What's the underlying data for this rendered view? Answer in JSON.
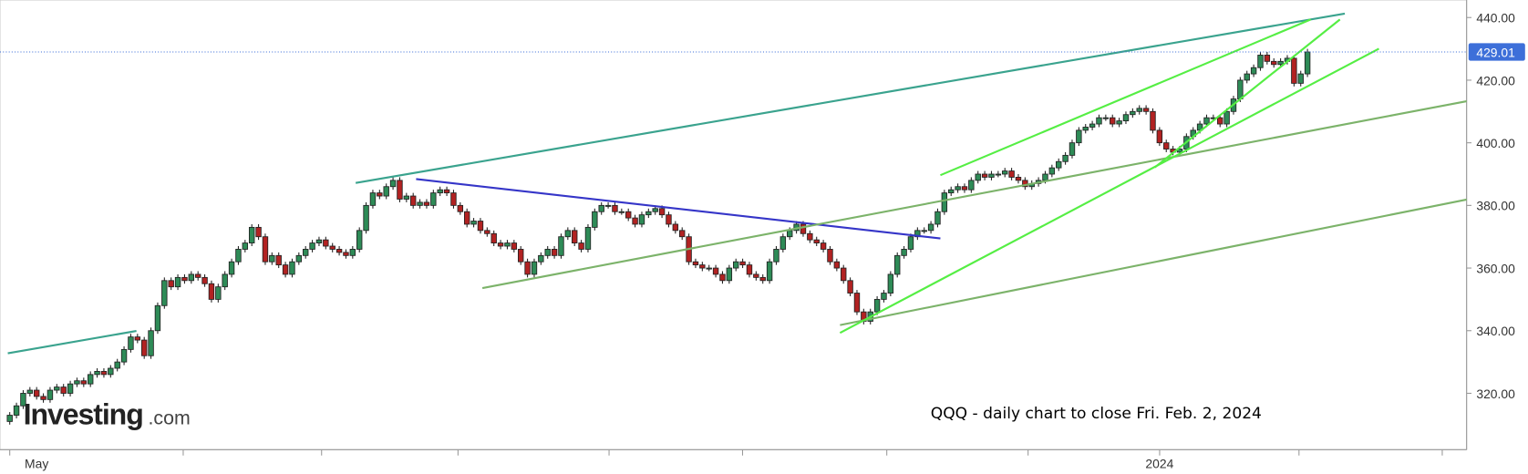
{
  "chart_data": {
    "type": "candlestick",
    "title": "QQQ - daily chart to close Fri. Feb. 2, 2024",
    "up_color": "#2e8b57",
    "down_color": "#b22222",
    "last_price_color": "#3d6fd9",
    "ylim": [
      302,
      445.6
    ],
    "yticks": [
      {
        "value": 320,
        "label": "320.00"
      },
      {
        "value": 340,
        "label": "340.00"
      },
      {
        "value": 360,
        "label": "360.00"
      },
      {
        "value": 380,
        "label": "380.00"
      },
      {
        "value": 400,
        "label": "400.00"
      },
      {
        "value": 420,
        "label": "420.00"
      },
      {
        "value": 440,
        "label": "440.00"
      }
    ],
    "categories": [
      null,
      null,
      null,
      null,
      "May",
      null,
      null,
      null,
      null,
      null,
      null,
      null,
      null,
      null,
      null,
      null,
      null,
      null,
      null,
      null,
      null,
      null,
      null,
      null,
      null,
      null,
      null,
      null,
      null,
      null,
      null,
      null,
      null,
      null,
      null,
      null,
      null,
      null,
      null,
      null,
      null,
      null,
      null,
      null,
      null,
      null,
      null,
      null,
      null,
      null,
      null,
      null,
      null,
      null,
      null,
      null,
      null,
      null,
      null,
      null,
      null,
      null,
      null,
      null,
      null,
      null,
      null,
      null,
      null,
      null,
      null,
      null,
      null,
      null,
      null,
      null,
      null,
      null,
      null,
      null,
      null,
      null,
      null,
      null,
      null,
      null,
      null,
      null,
      null,
      null,
      null,
      null,
      null,
      null,
      null,
      null,
      null,
      null,
      null,
      null,
      null,
      null,
      null,
      null,
      null,
      null,
      null,
      null,
      null,
      null,
      null,
      null,
      null,
      null,
      null,
      null,
      null,
      null,
      null,
      null,
      null,
      null,
      null,
      null,
      null,
      null,
      null,
      null,
      null,
      null,
      null,
      null,
      null,
      null,
      null,
      null,
      null,
      null,
      null,
      null,
      null,
      null,
      null,
      null,
      null,
      null,
      null,
      null,
      null,
      null,
      null,
      null,
      null,
      null,
      null,
      null,
      null,
      null,
      null,
      null,
      null,
      null,
      null,
      null,
      null,
      null,
      null,
      null,
      null,
      null,
      null,
      "2024",
      null,
      null,
      null,
      null,
      null,
      null,
      null,
      null,
      null,
      null,
      null,
      null,
      null,
      null,
      null,
      null,
      null,
      null,
      null,
      null,
      null,
      null
    ],
    "open": [
      311,
      313,
      316,
      320,
      321,
      319,
      318,
      321,
      322,
      320,
      323,
      324,
      323,
      326,
      327,
      326,
      328,
      330,
      334,
      338,
      337,
      332,
      340,
      348,
      356,
      354,
      357,
      356,
      358,
      357,
      355,
      350,
      354,
      358,
      362,
      366,
      368,
      373,
      370,
      362,
      364,
      361,
      358,
      362,
      364,
      366,
      368,
      369,
      367,
      366,
      365,
      364,
      366,
      372,
      380,
      384,
      383,
      386,
      388,
      382,
      383,
      380,
      381,
      380,
      384,
      385,
      384,
      380,
      378,
      374,
      375,
      372,
      371,
      368,
      367,
      368,
      366,
      362,
      358,
      362,
      364,
      366,
      364,
      370,
      372,
      368,
      366,
      373,
      378,
      380,
      380,
      378,
      378,
      376,
      374,
      377,
      378,
      379,
      377,
      374,
      372,
      370,
      362,
      361,
      360,
      360,
      358,
      356,
      360,
      362,
      361,
      358,
      357,
      356,
      362,
      366,
      370,
      372,
      374,
      371,
      369,
      368,
      366,
      362,
      360,
      356,
      352,
      346,
      343,
      346,
      350,
      352,
      358,
      364,
      366,
      370,
      372,
      372,
      374,
      378,
      384,
      385,
      386,
      385,
      388,
      390,
      389,
      390,
      390,
      391,
      389,
      388,
      386,
      387,
      388,
      390,
      392,
      394,
      396,
      400,
      404,
      405,
      406,
      408,
      408,
      406,
      407,
      409,
      410,
      411,
      410,
      404,
      400,
      398,
      397,
      398,
      402,
      404,
      406,
      408,
      408,
      406,
      410,
      414,
      420,
      422,
      424,
      428,
      426,
      425,
      426,
      427,
      419,
      422
    ],
    "high": [
      314,
      317,
      321,
      322,
      322,
      320,
      322,
      323,
      323,
      324,
      325,
      325,
      327,
      328,
      328,
      329,
      331,
      335,
      339,
      339,
      338,
      341,
      349,
      357,
      357,
      358,
      358,
      359,
      359,
      358,
      356,
      355,
      359,
      363,
      367,
      369,
      374,
      374,
      371,
      365,
      365,
      362,
      363,
      365,
      367,
      369,
      370,
      370,
      368,
      367,
      366,
      367,
      373,
      381,
      385,
      385,
      387,
      389,
      389,
      384,
      384,
      382,
      382,
      385,
      386,
      386,
      385,
      381,
      379,
      376,
      376,
      373,
      372,
      369,
      369,
      369,
      367,
      363,
      363,
      365,
      367,
      367,
      371,
      373,
      373,
      369,
      374,
      379,
      381,
      381,
      381,
      379,
      379,
      377,
      378,
      379,
      380,
      380,
      378,
      375,
      373,
      371,
      363,
      362,
      361,
      361,
      359,
      361,
      363,
      363,
      362,
      359,
      358,
      363,
      367,
      371,
      373,
      375,
      375,
      372,
      370,
      369,
      367,
      363,
      361,
      357,
      353,
      347,
      347,
      351,
      353,
      359,
      365,
      367,
      371,
      373,
      373,
      375,
      379,
      385,
      386,
      387,
      387,
      389,
      391,
      391,
      391,
      391,
      392,
      392,
      390,
      389,
      388,
      389,
      391,
      393,
      395,
      397,
      401,
      405,
      406,
      407,
      409,
      409,
      409,
      408,
      410,
      411,
      412,
      412,
      411,
      405,
      401,
      399,
      399,
      403,
      405,
      407,
      409,
      409,
      409,
      411,
      415,
      421,
      423,
      425,
      429,
      429,
      427,
      427,
      428,
      428,
      423,
      430
    ],
    "low": [
      310,
      312,
      315,
      319,
      318,
      317,
      317,
      320,
      319,
      319,
      322,
      322,
      322,
      325,
      325,
      325,
      327,
      329,
      333,
      336,
      331,
      331,
      339,
      347,
      353,
      353,
      355,
      355,
      356,
      354,
      349,
      349,
      353,
      357,
      361,
      365,
      367,
      369,
      361,
      361,
      360,
      357,
      357,
      361,
      363,
      365,
      367,
      366,
      365,
      364,
      363,
      363,
      365,
      371,
      379,
      382,
      382,
      385,
      381,
      381,
      379,
      379,
      379,
      379,
      383,
      383,
      379,
      377,
      373,
      373,
      371,
      370,
      367,
      366,
      366,
      365,
      361,
      357,
      357,
      361,
      363,
      363,
      363,
      369,
      367,
      365,
      365,
      372,
      377,
      379,
      377,
      377,
      375,
      373,
      373,
      376,
      377,
      376,
      373,
      371,
      369,
      361,
      360,
      359,
      359,
      357,
      355,
      355,
      359,
      360,
      357,
      356,
      355,
      355,
      361,
      365,
      369,
      371,
      370,
      368,
      367,
      365,
      361,
      359,
      355,
      351,
      345,
      342,
      342,
      345,
      349,
      351,
      357,
      363,
      365,
      369,
      371,
      371,
      373,
      377,
      383,
      384,
      384,
      384,
      387,
      388,
      388,
      389,
      389,
      388,
      387,
      385,
      385,
      386,
      387,
      389,
      391,
      393,
      395,
      399,
      403,
      404,
      405,
      407,
      405,
      405,
      406,
      408,
      409,
      409,
      403,
      399,
      397,
      396,
      396,
      397,
      401,
      403,
      405,
      407,
      405,
      405,
      409,
      413,
      419,
      421,
      423,
      425,
      424,
      424,
      425,
      418,
      418,
      421
    ],
    "close": [
      313,
      316,
      320,
      321,
      319,
      318,
      321,
      322,
      320,
      323,
      324,
      323,
      326,
      327,
      326,
      328,
      330,
      334,
      338,
      337,
      332,
      340,
      348,
      356,
      354,
      357,
      356,
      358,
      357,
      355,
      350,
      354,
      358,
      362,
      366,
      368,
      373,
      370,
      362,
      364,
      361,
      358,
      362,
      364,
      366,
      368,
      369,
      367,
      366,
      365,
      364,
      366,
      372,
      380,
      384,
      383,
      386,
      388,
      382,
      383,
      380,
      381,
      380,
      384,
      385,
      384,
      380,
      378,
      374,
      375,
      372,
      371,
      368,
      367,
      368,
      366,
      362,
      358,
      362,
      364,
      366,
      364,
      370,
      372,
      368,
      366,
      373,
      378,
      380,
      380,
      378,
      378,
      376,
      374,
      377,
      378,
      379,
      377,
      374,
      372,
      370,
      362,
      361,
      360,
      360,
      358,
      356,
      360,
      362,
      361,
      358,
      357,
      356,
      362,
      366,
      370,
      372,
      374,
      371,
      369,
      368,
      366,
      362,
      360,
      356,
      352,
      346,
      343,
      346,
      350,
      352,
      358,
      364,
      366,
      370,
      372,
      372,
      374,
      378,
      384,
      385,
      386,
      385,
      388,
      390,
      389,
      390,
      390,
      391,
      389,
      388,
      386,
      387,
      388,
      390,
      392,
      394,
      396,
      400,
      404,
      405,
      406,
      408,
      408,
      406,
      407,
      409,
      410,
      411,
      410,
      404,
      400,
      398,
      397,
      398,
      402,
      404,
      406,
      408,
      408,
      406,
      410,
      414,
      420,
      422,
      424,
      428,
      426,
      425,
      426,
      427,
      419,
      422,
      429.01
    ]
  },
  "watermark": {
    "brand": "Investing",
    "suffix": ".com"
  }
}
